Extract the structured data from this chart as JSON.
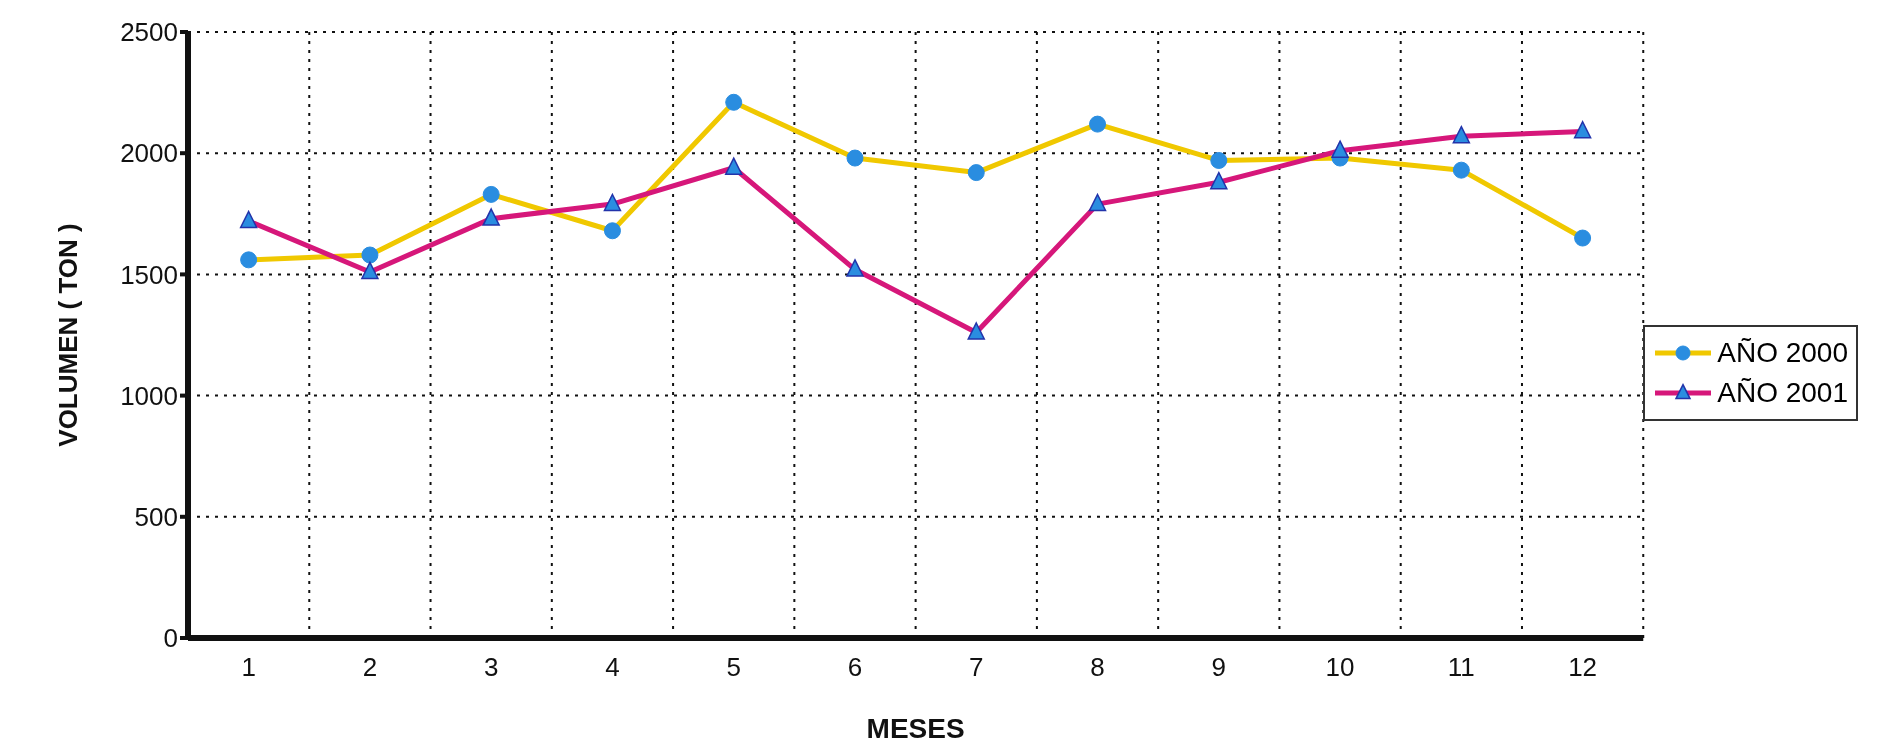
{
  "chart_data": {
    "type": "line",
    "xlabel": "MESES",
    "ylabel": "VOLUMEN ( TON )",
    "x": [
      1,
      2,
      3,
      4,
      5,
      6,
      7,
      8,
      9,
      10,
      11,
      12
    ],
    "xlim": [
      0.5,
      12.5
    ],
    "xticks": [
      1,
      2,
      3,
      4,
      5,
      6,
      7,
      8,
      9,
      10,
      11,
      12
    ],
    "series": [
      {
        "name": "AÑO 2000",
        "color": "#f0c800",
        "marker": "circle",
        "values": [
          1560,
          1580,
          1830,
          1680,
          2210,
          1980,
          1920,
          2120,
          1970,
          1980,
          1930,
          1650
        ]
      },
      {
        "name": "AÑO 2001",
        "color": "#d6177a",
        "marker": "triangle",
        "values": [
          1720,
          1510,
          1730,
          1790,
          1940,
          1520,
          1260,
          1790,
          1880,
          2010,
          2070,
          2090
        ]
      }
    ],
    "ylim": [
      0,
      2500
    ],
    "yticks": [
      0,
      500,
      1000,
      1500,
      2000,
      2500
    ],
    "grid": true,
    "legend": "right",
    "line_style": "solid"
  }
}
